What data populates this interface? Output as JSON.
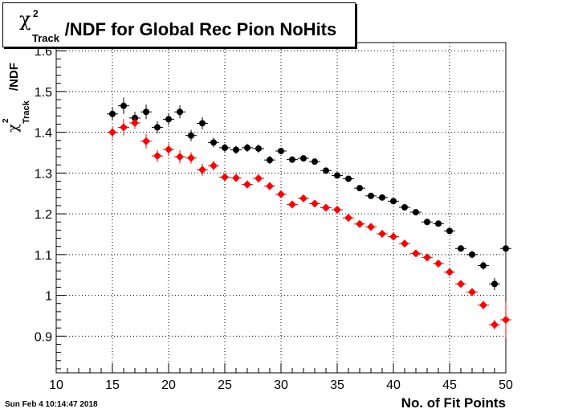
{
  "title": {
    "symbol": "χ",
    "superscript": "2",
    "subscript": "Track",
    "rest": "/NDF for Global Rec Pion NoHits"
  },
  "ylabel": {
    "symbol": "χ",
    "superscript": "2",
    "subscript": "Track",
    "rest": "/NDF"
  },
  "xlabel": "No. of Fit Points",
  "datestamp": "Sun Feb  4 10:14:47 2018",
  "colors": {
    "series_black": "#000000",
    "series_red": "#ff0000",
    "grid": "#000000"
  },
  "chart_data": {
    "type": "scatter",
    "title": "χ²_Track/NDF for Global Rec Pion NoHits",
    "xlabel": "No. of Fit Points",
    "ylabel": "χ²_Track/NDF",
    "xlim": [
      10,
      50
    ],
    "ylim": [
      0.81,
      1.62
    ],
    "x_ticks": [
      10,
      15,
      20,
      25,
      30,
      35,
      40,
      45,
      50
    ],
    "y_ticks": [
      0.9,
      1,
      1.1,
      1.2,
      1.3,
      1.4,
      1.5,
      1.6
    ],
    "y_tick_labels": [
      "0.9",
      "1",
      "1.1",
      "1.2",
      "1.3",
      "1.4",
      "1.5",
      "1.6"
    ],
    "grid": true,
    "x": [
      15,
      16,
      17,
      18,
      19,
      20,
      21,
      22,
      23,
      24,
      25,
      26,
      27,
      28,
      29,
      30,
      31,
      32,
      33,
      34,
      35,
      36,
      37,
      38,
      39,
      40,
      41,
      42,
      43,
      44,
      45,
      46,
      47,
      48,
      49,
      50
    ],
    "series": [
      {
        "color": "#000000",
        "marker": "circle",
        "values": [
          1.445,
          1.465,
          1.435,
          1.45,
          1.412,
          1.432,
          1.45,
          1.392,
          1.422,
          1.375,
          1.362,
          1.357,
          1.362,
          1.36,
          1.332,
          1.354,
          1.333,
          1.336,
          1.328,
          1.306,
          1.294,
          1.286,
          1.263,
          1.244,
          1.24,
          1.231,
          1.216,
          1.204,
          1.18,
          1.176,
          1.158,
          1.115,
          1.1,
          1.073,
          1.028,
          1.115
        ],
        "errors": [
          0.015,
          0.02,
          0.015,
          0.018,
          0.015,
          0.015,
          0.016,
          0.014,
          0.015,
          0.012,
          0.01,
          0.01,
          0.01,
          0.01,
          0.01,
          0.008,
          0.007,
          0.007,
          0.007,
          0.007,
          0.007,
          0.006,
          0.006,
          0.006,
          0.006,
          0.006,
          0.006,
          0.006,
          0.006,
          0.006,
          0.007,
          0.008,
          0.009,
          0.01,
          0.015,
          0.068
        ]
      },
      {
        "color": "#ff0000",
        "marker": "diamond",
        "values": [
          1.4,
          1.412,
          1.423,
          1.378,
          1.342,
          1.358,
          1.34,
          1.337,
          1.308,
          1.318,
          1.29,
          1.288,
          1.272,
          1.287,
          1.268,
          1.248,
          1.223,
          1.238,
          1.225,
          1.215,
          1.21,
          1.19,
          1.175,
          1.168,
          1.151,
          1.144,
          1.127,
          1.103,
          1.093,
          1.078,
          1.057,
          1.028,
          1.008,
          0.976,
          0.928,
          0.94
        ],
        "errors": [
          0.015,
          0.02,
          0.015,
          0.018,
          0.015,
          0.015,
          0.016,
          0.014,
          0.015,
          0.012,
          0.01,
          0.01,
          0.01,
          0.01,
          0.01,
          0.008,
          0.007,
          0.007,
          0.007,
          0.007,
          0.007,
          0.006,
          0.006,
          0.006,
          0.006,
          0.006,
          0.006,
          0.006,
          0.006,
          0.006,
          0.007,
          0.008,
          0.009,
          0.01,
          0.012,
          0.045
        ]
      }
    ]
  }
}
